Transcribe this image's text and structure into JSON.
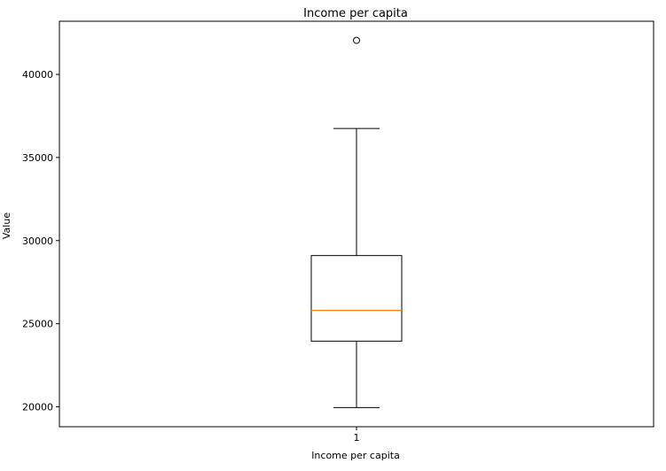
{
  "chart_data": {
    "type": "box",
    "title": "Income per capita",
    "xlabel": "Income per capita",
    "ylabel": "Value",
    "categories": [
      "1"
    ],
    "ylim": [
      18800,
      43200
    ],
    "yticks": [
      20000,
      25000,
      30000,
      35000,
      40000
    ],
    "boxes": [
      {
        "category": "1",
        "whisker_low": 19950,
        "q1": 23950,
        "median": 25800,
        "q3": 29100,
        "whisker_high": 36750,
        "outliers": [
          42050
        ]
      }
    ],
    "grid": false,
    "colors": {
      "box": "#000000",
      "median": "#ff7f0e",
      "outlier": "#000000"
    }
  }
}
